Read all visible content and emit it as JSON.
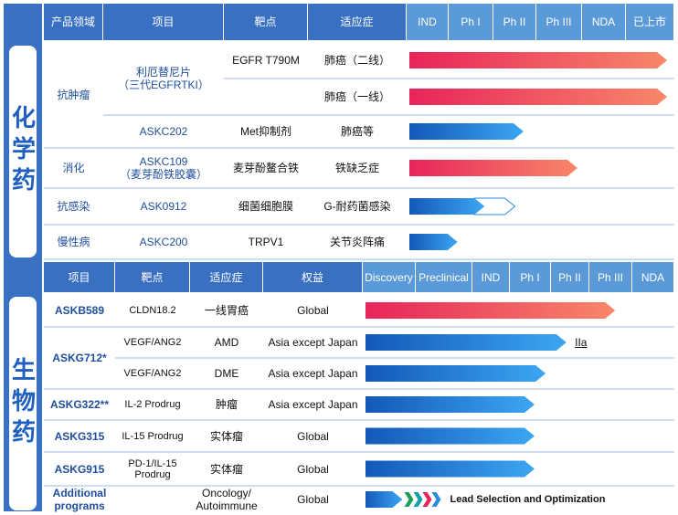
{
  "chemical": {
    "label": "化学药",
    "headers": [
      "产品领域",
      "项目",
      "靶点",
      "适应症"
    ],
    "stages": [
      "IND",
      "Ph I",
      "Ph II",
      "Ph III",
      "NDA",
      "已上市"
    ],
    "areas": [
      {
        "name": "抗肿瘤",
        "projects": [
          {
            "name": "利厄替尼片\n（三代EGFRTKI）",
            "lines": [
              {
                "target": "EGFR T790M",
                "indication": "肺癌（二线）",
                "progress": 5.85,
                "color": "red"
              },
              {
                "target": null,
                "indication": "肺癌（一线）",
                "progress": 5.85,
                "color": "red"
              }
            ]
          },
          {
            "name": "ASKC202",
            "lines": [
              {
                "target": "Met抑制剂",
                "indication": "肺癌等",
                "progress": 2.7,
                "color": "blue"
              }
            ]
          }
        ]
      },
      {
        "name": "消化",
        "projects": [
          {
            "name": "ASKC109\n（麦芽酚铁胶囊）",
            "lines": [
              {
                "target": "麦芽酚鳌合铁",
                "indication": "铁缺乏症",
                "progress": 3.9,
                "color": "red"
              }
            ]
          }
        ]
      },
      {
        "name": "抗感染",
        "projects": [
          {
            "name": "ASK0912",
            "lines": [
              {
                "target": "细菌细胞膜",
                "indication": "G-耐药菌感染",
                "progress": 1.8,
                "planned": 2.5,
                "color": "blue"
              }
            ]
          }
        ]
      },
      {
        "name": "慢性病",
        "projects": [
          {
            "name": "ASKC200",
            "lines": [
              {
                "target": "TRPV1",
                "indication": "关节炎阵痛",
                "progress": 1.2,
                "color": "blue"
              }
            ]
          }
        ]
      }
    ]
  },
  "biologic": {
    "label": "生物药",
    "headers": [
      "项目",
      "靶点",
      "适应症",
      "权益"
    ],
    "stages": [
      "Discovery",
      "Preclinical",
      "IND",
      "Ph I",
      "Ph II",
      "Ph III",
      "NDA"
    ],
    "projects": [
      {
        "name": "ASKB589",
        "lines": [
          {
            "target": "CLDN18.2",
            "indication": "一线胃癌",
            "rights": "Global",
            "progress": 5.6,
            "color": "red"
          }
        ]
      },
      {
        "name": "ASKG712*",
        "lines": [
          {
            "target": "VEGF/ANG2",
            "indication": "AMD",
            "rights": "Asia except Japan",
            "progress": 4.4,
            "note": "IIa",
            "color": "blue"
          },
          {
            "target": "VEGF/ANG2",
            "indication": "DME",
            "rights": "Asia except Japan",
            "progress": 3.87,
            "color": "blue"
          }
        ]
      },
      {
        "name": "ASKG322**",
        "lines": [
          {
            "target": "IL-2 Prodrug",
            "indication": "肿瘤",
            "rights": "Asia except Japan",
            "progress": 3.6,
            "color": "blue"
          }
        ]
      },
      {
        "name": "ASKG315",
        "lines": [
          {
            "target": "IL-15 Prodrug",
            "indication": "实体瘤",
            "rights": "Global",
            "progress": 3.6,
            "color": "blue"
          }
        ]
      },
      {
        "name": "ASKG915",
        "lines": [
          {
            "target": "PD-1/IL-15\nProdrug",
            "indication": "实体瘤",
            "rights": "Global",
            "progress": 3.6,
            "color": "blue"
          }
        ]
      },
      {
        "name": "Additional programs",
        "lines": [
          {
            "target": null,
            "indication": "Oncology/\nAutoimmune",
            "rights": "Global",
            "progress": 0.75,
            "stage_note": "Lead Selection and Optimization",
            "color": "blue"
          }
        ]
      }
    ]
  }
}
